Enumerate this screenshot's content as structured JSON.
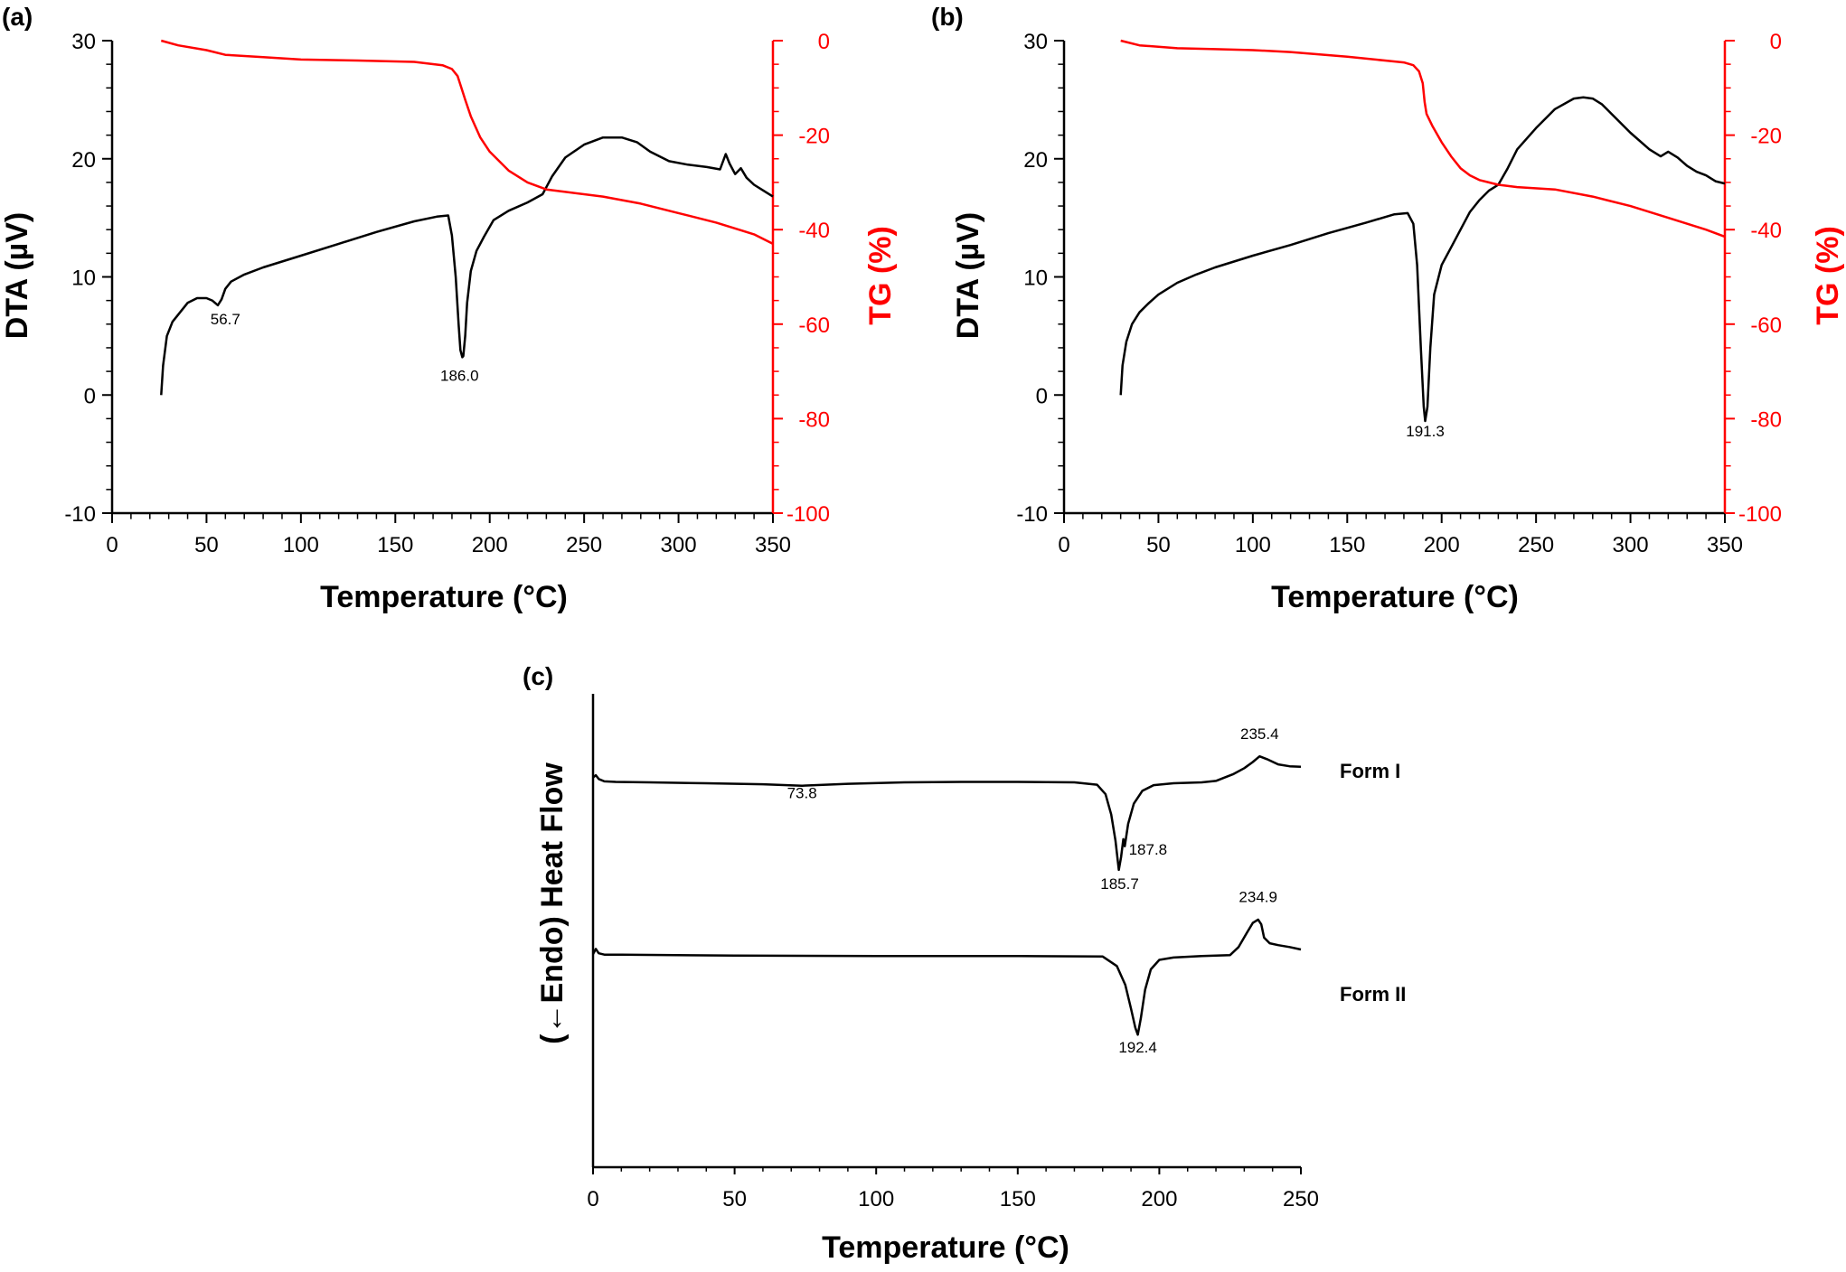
{
  "chart_data": [
    {
      "panel": "(a)",
      "type": "line",
      "xlabel": "Temperature (°C)",
      "ylabel": "DTA (µV)",
      "y2label": "TG (%)",
      "xlim": [
        0,
        350
      ],
      "ylim": [
        -10,
        30
      ],
      "y2lim": [
        -100,
        0
      ],
      "xticks": [
        0,
        50,
        100,
        150,
        200,
        250,
        300,
        350
      ],
      "yticks": [
        -10,
        0,
        10,
        20,
        30
      ],
      "y2ticks": [
        -100,
        -80,
        -60,
        -40,
        -20,
        0
      ],
      "colors": {
        "dta": "#000000",
        "tg": "#ff0000"
      },
      "series": [
        {
          "axis": "left",
          "color": "#000000",
          "x": [
            26,
            27,
            29,
            32,
            36,
            40,
            45,
            50,
            53,
            56,
            58,
            60,
            63,
            70,
            80,
            100,
            120,
            140,
            160,
            172,
            178,
            180,
            182,
            183.5,
            184.5,
            185.5,
            186,
            187,
            188,
            190,
            193,
            197,
            202,
            210,
            220,
            228,
            233,
            240,
            250,
            260,
            270,
            278,
            285,
            295,
            305,
            315,
            322,
            325,
            327,
            330,
            333,
            336,
            340,
            345,
            350
          ],
          "y": [
            0,
            2.5,
            5,
            6.2,
            7,
            7.8,
            8.2,
            8.2,
            8,
            7.6,
            8.1,
            9,
            9.6,
            10.2,
            10.8,
            11.8,
            12.8,
            13.8,
            14.7,
            15.1,
            15.2,
            13.5,
            10,
            6,
            3.8,
            3.2,
            3.3,
            5,
            7.8,
            10.5,
            12.2,
            13.4,
            14.8,
            15.6,
            16.3,
            17,
            18.5,
            20.1,
            21.2,
            21.8,
            21.8,
            21.4,
            20.6,
            19.8,
            19.5,
            19.3,
            19.1,
            20.4,
            19.6,
            18.7,
            19.2,
            18.4,
            17.8,
            17.3,
            16.8
          ]
        },
        {
          "axis": "right",
          "color": "#ff0000",
          "x": [
            26,
            35,
            50,
            60,
            80,
            100,
            130,
            160,
            175,
            180,
            183,
            185,
            187,
            190,
            195,
            200,
            210,
            220,
            230,
            240,
            260,
            280,
            300,
            320,
            340,
            350
          ],
          "y": [
            0,
            -1,
            -2,
            -3,
            -3.5,
            -4,
            -4.2,
            -4.5,
            -5.2,
            -6,
            -7.5,
            -10,
            -12.5,
            -16,
            -20.5,
            -23.5,
            -27.5,
            -30,
            -31.5,
            -32,
            -33,
            -34.5,
            -36.5,
            -38.5,
            -41,
            -43
          ]
        }
      ],
      "annotations": [
        {
          "text": "56.7",
          "x": 60,
          "y": 6.0
        },
        {
          "text": "186.0",
          "x": 184,
          "y": 1.2
        }
      ]
    },
    {
      "panel": "(b)",
      "type": "line",
      "xlabel": "Temperature (°C)",
      "ylabel": "DTA (µV)",
      "y2label": "TG (%)",
      "xlim": [
        0,
        350
      ],
      "ylim": [
        -10,
        30
      ],
      "y2lim": [
        -100,
        0
      ],
      "xticks": [
        0,
        50,
        100,
        150,
        200,
        250,
        300,
        350
      ],
      "yticks": [
        -10,
        0,
        10,
        20,
        30
      ],
      "y2ticks": [
        -100,
        -80,
        -60,
        -40,
        -20,
        0
      ],
      "colors": {
        "dta": "#000000",
        "tg": "#ff0000"
      },
      "series": [
        {
          "axis": "left",
          "color": "#000000",
          "x": [
            30,
            31,
            33,
            36,
            40,
            45,
            50,
            60,
            70,
            80,
            100,
            120,
            140,
            160,
            175,
            182,
            185,
            187,
            189,
            190.5,
            191.3,
            192.5,
            194,
            196,
            200,
            205,
            210,
            215,
            220,
            225,
            230,
            235,
            240,
            250,
            260,
            270,
            275,
            280,
            285,
            290,
            300,
            310,
            316,
            320,
            325,
            330,
            335,
            340,
            345,
            350
          ],
          "y": [
            0,
            2.5,
            4.5,
            6,
            7,
            7.8,
            8.5,
            9.5,
            10.2,
            10.8,
            11.8,
            12.7,
            13.7,
            14.6,
            15.3,
            15.4,
            14.5,
            11,
            4,
            -1,
            -2.2,
            -1,
            4,
            8.5,
            11,
            12.5,
            14,
            15.5,
            16.5,
            17.3,
            17.8,
            19.2,
            20.8,
            22.6,
            24.2,
            25.1,
            25.2,
            25.1,
            24.6,
            23.8,
            22.2,
            20.8,
            20.2,
            20.6,
            20.1,
            19.4,
            18.9,
            18.6,
            18.1,
            17.9
          ]
        },
        {
          "axis": "right",
          "color": "#ff0000",
          "x": [
            30,
            40,
            60,
            80,
            100,
            120,
            150,
            170,
            180,
            185,
            188,
            190,
            191,
            192,
            195,
            200,
            205,
            210,
            215,
            220,
            225,
            230,
            240,
            260,
            280,
            300,
            320,
            340,
            350
          ],
          "y": [
            0,
            -1,
            -1.6,
            -1.8,
            -2,
            -2.4,
            -3.4,
            -4.2,
            -4.6,
            -5.2,
            -6.5,
            -9,
            -13,
            -15.5,
            -18,
            -21.5,
            -24.5,
            -27,
            -28.5,
            -29.5,
            -30,
            -30.5,
            -31,
            -31.5,
            -33,
            -35,
            -37.5,
            -40,
            -41.5
          ]
        }
      ],
      "annotations": [
        {
          "text": "191.3",
          "x": 191.3,
          "y": -3.5
        }
      ]
    },
    {
      "panel": "(c)",
      "type": "line",
      "xlabel": "Temperature (°C)",
      "ylabel": "(←Endo) Heat Flow",
      "xlim": [
        0,
        250
      ],
      "ylim": [
        0,
        100
      ],
      "xticks": [
        0,
        50,
        100,
        150,
        200,
        250
      ],
      "colors": {
        "form1": "#000000",
        "form2": "#000000"
      },
      "series": [
        {
          "name": "Form I",
          "color": "#000000",
          "x": [
            0,
            1,
            2,
            4,
            8,
            20,
            40,
            60,
            73.8,
            90,
            110,
            130,
            150,
            170,
            178,
            181,
            183,
            184.5,
            185.7,
            186.5,
            187.3,
            187.8,
            189,
            191,
            194,
            198,
            205,
            215,
            220,
            226,
            230,
            233,
            235.4,
            238,
            242,
            246,
            250
          ],
          "y": [
            82.3,
            82.8,
            82.0,
            81.5,
            81.4,
            81.3,
            81.1,
            80.9,
            80.6,
            81.0,
            81.3,
            81.4,
            81.4,
            81.3,
            80.8,
            78.8,
            74.5,
            69,
            62.8,
            65.5,
            69.3,
            67.8,
            72.5,
            76.8,
            79.5,
            80.7,
            81.1,
            81.3,
            81.6,
            83,
            84.3,
            85.6,
            86.8,
            86.2,
            85.1,
            84.7,
            84.6
          ]
        },
        {
          "name": "Form II",
          "color": "#000000",
          "x": [
            0,
            1,
            2,
            4,
            10,
            50,
            100,
            150,
            180,
            185,
            188,
            190,
            191.5,
            192.4,
            193.5,
            195,
            197,
            200,
            205,
            215,
            225,
            228,
            231,
            233,
            234.9,
            236,
            237,
            239,
            242,
            246,
            250
          ],
          "y": [
            45.0,
            46.1,
            45.2,
            44.9,
            44.9,
            44.7,
            44.6,
            44.6,
            44.5,
            42.5,
            38.5,
            33.5,
            29.5,
            28.0,
            31.5,
            37.5,
            41.8,
            43.8,
            44.3,
            44.6,
            44.8,
            46.5,
            49.6,
            51.6,
            52.3,
            51.3,
            48.5,
            47.3,
            46.9,
            46.5,
            46.0
          ]
        }
      ],
      "series_labels": [
        {
          "text": "Form I"
        },
        {
          "text": "Form II"
        }
      ],
      "annotations": [
        {
          "text": "235.4",
          "x": 235.4,
          "y": 90.5
        },
        {
          "text": "73.8",
          "x": 73.8,
          "y": 78.0
        },
        {
          "text": "187.8",
          "x": 196,
          "y": 66.0
        },
        {
          "text": "185.7",
          "x": 186,
          "y": 58.8
        },
        {
          "text": "234.9",
          "x": 234.9,
          "y": 56.0
        },
        {
          "text": "192.4",
          "x": 192.4,
          "y": 24.2
        }
      ]
    }
  ]
}
